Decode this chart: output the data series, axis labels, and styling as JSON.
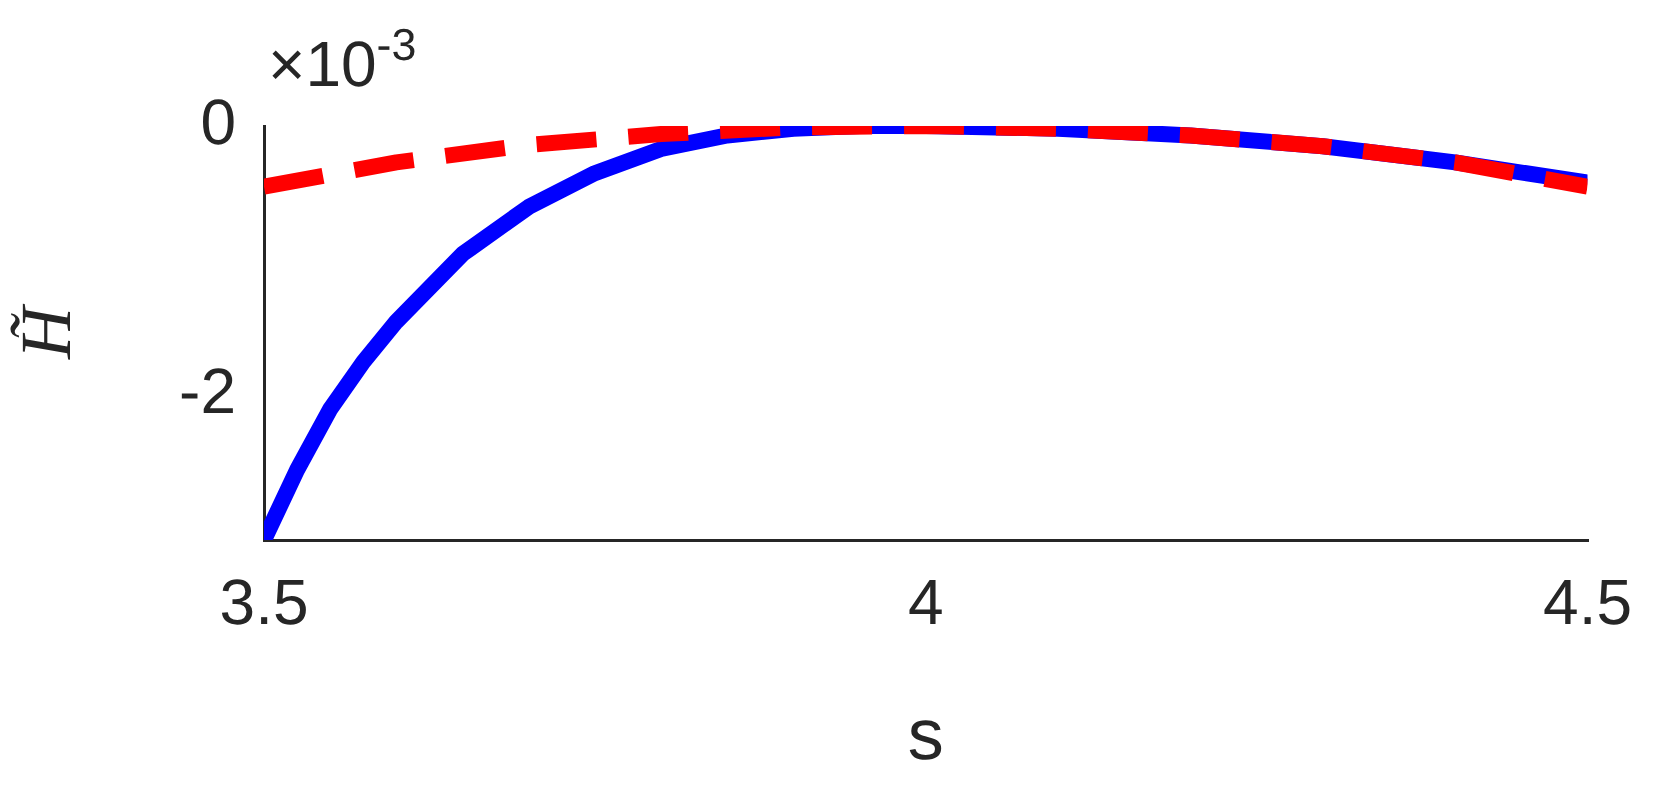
{
  "chart_data": {
    "type": "line",
    "xlabel": "s",
    "ylabel": "H̃",
    "annotations": [
      "×10$^{-3}$"
    ],
    "xlim": [
      3.5,
      4.5
    ],
    "xticks": [
      3.5,
      4,
      4.5
    ],
    "ylim": [
      -3.07,
      0
    ],
    "yticks": [
      -2,
      0
    ],
    "grid": false,
    "legend": false,
    "marker": "none",
    "series": [
      {
        "color": "#0000ff",
        "line_style": "solid",
        "x": [
          3.5,
          3.525,
          3.55,
          3.575,
          3.6,
          3.65,
          3.7,
          3.75,
          3.8,
          3.85,
          3.9,
          3.95,
          4.0,
          4.1,
          4.2,
          4.3,
          4.4,
          4.5
        ],
        "values": [
          -3.07,
          -2.55,
          -2.1,
          -1.75,
          -1.45,
          -0.95,
          -0.6,
          -0.35,
          -0.17,
          -0.07,
          -0.02,
          0,
          0,
          -0.02,
          -0.07,
          -0.15,
          -0.27,
          -0.42
        ]
      },
      {
        "color": "#ff0000",
        "line_style": "dashed",
        "x": [
          3.5,
          3.6,
          3.7,
          3.8,
          3.9,
          4.0,
          4.1,
          4.2,
          4.3,
          4.4,
          4.5
        ],
        "values": [
          -0.45,
          -0.27,
          -0.14,
          -0.06,
          -0.01,
          0,
          -0.02,
          -0.07,
          -0.15,
          -0.27,
          -0.45
        ]
      }
    ]
  }
}
